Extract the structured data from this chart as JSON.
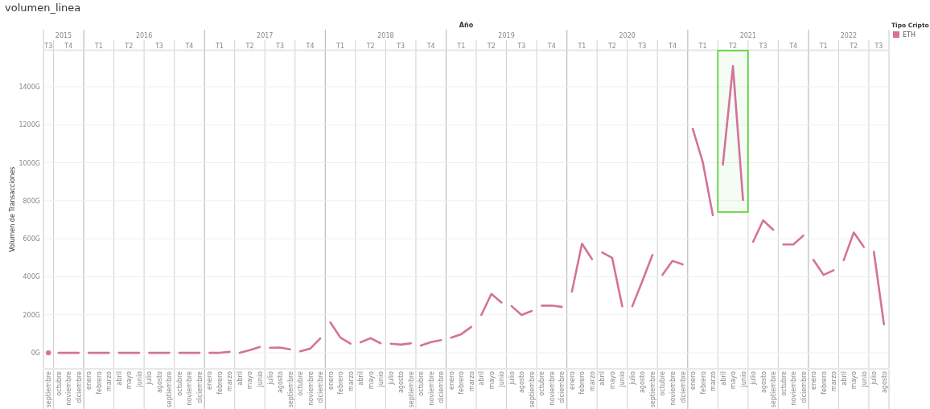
{
  "chart_data": {
    "type": "line",
    "title": "volumen_linea",
    "ylabel": "Volumen de Transacciones",
    "x2label": "Año",
    "legend_title": "Tipo Cripto",
    "legend": "top right",
    "grid": "y",
    "marker": "none",
    "line_style": "solid",
    "xlim": [
      "2015-08-16",
      "2022-08-16"
    ],
    "ylim": [
      -80,
      1590
    ],
    "yticks": [
      {
        "value": 0,
        "label": "0G"
      },
      {
        "value": 200,
        "label": "200G"
      },
      {
        "value": 400,
        "label": "400G"
      },
      {
        "value": 600,
        "label": "600G"
      },
      {
        "value": 800,
        "label": "800G"
      },
      {
        "value": 1000,
        "label": "1000G"
      },
      {
        "value": 1200,
        "label": "1200G"
      },
      {
        "value": 1400,
        "label": "1400G"
      }
    ],
    "xticks": [
      {
        "value": "2015-09",
        "label": "septiembre"
      },
      {
        "value": "2015-10",
        "label": "octubre"
      },
      {
        "value": "2015-11",
        "label": "noviembre"
      },
      {
        "value": "2015-12",
        "label": "diciembre"
      },
      {
        "value": "2016-01",
        "label": "enero"
      },
      {
        "value": "2016-02",
        "label": "febrero"
      },
      {
        "value": "2016-03",
        "label": "marzo"
      },
      {
        "value": "2016-04",
        "label": "abril"
      },
      {
        "value": "2016-05",
        "label": "mayo"
      },
      {
        "value": "2016-06",
        "label": "junio"
      },
      {
        "value": "2016-07",
        "label": "julio"
      },
      {
        "value": "2016-08",
        "label": "agosto"
      },
      {
        "value": "2016-09",
        "label": "septiembre"
      },
      {
        "value": "2016-10",
        "label": "octubre"
      },
      {
        "value": "2016-11",
        "label": "noviembre"
      },
      {
        "value": "2016-12",
        "label": "diciembre"
      },
      {
        "value": "2017-01",
        "label": "enero"
      },
      {
        "value": "2017-02",
        "label": "febrero"
      },
      {
        "value": "2017-03",
        "label": "marzo"
      },
      {
        "value": "2017-04",
        "label": "abril"
      },
      {
        "value": "2017-05",
        "label": "mayo"
      },
      {
        "value": "2017-06",
        "label": "junio"
      },
      {
        "value": "2017-07",
        "label": "julio"
      },
      {
        "value": "2017-08",
        "label": "agosto"
      },
      {
        "value": "2017-09",
        "label": "septiembre"
      },
      {
        "value": "2017-10",
        "label": "octubre"
      },
      {
        "value": "2017-11",
        "label": "noviembre"
      },
      {
        "value": "2017-12",
        "label": "diciembre"
      },
      {
        "value": "2018-01",
        "label": "enero"
      },
      {
        "value": "2018-02",
        "label": "febrero"
      },
      {
        "value": "2018-03",
        "label": "marzo"
      },
      {
        "value": "2018-04",
        "label": "abril"
      },
      {
        "value": "2018-05",
        "label": "mayo"
      },
      {
        "value": "2018-06",
        "label": "junio"
      },
      {
        "value": "2018-07",
        "label": "julio"
      },
      {
        "value": "2018-08",
        "label": "agosto"
      },
      {
        "value": "2018-09",
        "label": "septiembre"
      },
      {
        "value": "2018-10",
        "label": "octubre"
      },
      {
        "value": "2018-11",
        "label": "noviembre"
      },
      {
        "value": "2018-12",
        "label": "diciembre"
      },
      {
        "value": "2019-01",
        "label": "enero"
      },
      {
        "value": "2019-02",
        "label": "febrero"
      },
      {
        "value": "2019-03",
        "label": "marzo"
      },
      {
        "value": "2019-04",
        "label": "abril"
      },
      {
        "value": "2019-05",
        "label": "mayo"
      },
      {
        "value": "2019-06",
        "label": "junio"
      },
      {
        "value": "2019-07",
        "label": "julio"
      },
      {
        "value": "2019-08",
        "label": "agosto"
      },
      {
        "value": "2019-09",
        "label": "septiembre"
      },
      {
        "value": "2019-10",
        "label": "octubre"
      },
      {
        "value": "2019-11",
        "label": "noviembre"
      },
      {
        "value": "2019-12",
        "label": "diciembre"
      },
      {
        "value": "2020-01",
        "label": "enero"
      },
      {
        "value": "2020-02",
        "label": "febrero"
      },
      {
        "value": "2020-03",
        "label": "marzo"
      },
      {
        "value": "2020-04",
        "label": "abril"
      },
      {
        "value": "2020-05",
        "label": "mayo"
      },
      {
        "value": "2020-06",
        "label": "junio"
      },
      {
        "value": "2020-07",
        "label": "julio"
      },
      {
        "value": "2020-08",
        "label": "agosto"
      },
      {
        "value": "2020-09",
        "label": "septiembre"
      },
      {
        "value": "2020-10",
        "label": "octubre"
      },
      {
        "value": "2020-11",
        "label": "noviembre"
      },
      {
        "value": "2020-12",
        "label": "diciembre"
      },
      {
        "value": "2021-01",
        "label": "enero"
      },
      {
        "value": "2021-02",
        "label": "febrero"
      },
      {
        "value": "2021-03",
        "label": "marzo"
      },
      {
        "value": "2021-04",
        "label": "abril"
      },
      {
        "value": "2021-05",
        "label": "mayo"
      },
      {
        "value": "2021-06",
        "label": "junio"
      },
      {
        "value": "2021-07",
        "label": "julio"
      },
      {
        "value": "2021-08",
        "label": "agosto"
      },
      {
        "value": "2021-09",
        "label": "septiembre"
      },
      {
        "value": "2021-10",
        "label": "octubre"
      },
      {
        "value": "2021-11",
        "label": "noviembre"
      },
      {
        "value": "2021-12",
        "label": "diciembre"
      },
      {
        "value": "2022-01",
        "label": "enero"
      },
      {
        "value": "2022-02",
        "label": "febrero"
      },
      {
        "value": "2022-03",
        "label": "marzo"
      },
      {
        "value": "2022-04",
        "label": "abril"
      },
      {
        "value": "2022-05",
        "label": "mayo"
      },
      {
        "value": "2022-06",
        "label": "junio"
      },
      {
        "value": "2022-07",
        "label": "julio"
      },
      {
        "value": "2022-08",
        "label": "agosto"
      }
    ],
    "x2ticks": [
      {
        "value": "2015-09",
        "label": "T3"
      },
      {
        "value": "2015-11",
        "label": "T4"
      },
      {
        "value": "2016-02",
        "label": "T1"
      },
      {
        "value": "2016-05",
        "label": "T2"
      },
      {
        "value": "2016-08",
        "label": "T3"
      },
      {
        "value": "2016-11",
        "label": "T4"
      },
      {
        "value": "2017-02",
        "label": "T1"
      },
      {
        "value": "2017-05",
        "label": "T2"
      },
      {
        "value": "2017-08",
        "label": "T3"
      },
      {
        "value": "2017-11",
        "label": "T4"
      },
      {
        "value": "2018-02",
        "label": "T1"
      },
      {
        "value": "2018-05",
        "label": "T2"
      },
      {
        "value": "2018-08",
        "label": "T3"
      },
      {
        "value": "2018-11",
        "label": "T4"
      },
      {
        "value": "2019-02",
        "label": "T1"
      },
      {
        "value": "2019-05",
        "label": "T2"
      },
      {
        "value": "2019-08",
        "label": "T3"
      },
      {
        "value": "2019-11",
        "label": "T4"
      },
      {
        "value": "2020-02",
        "label": "T1"
      },
      {
        "value": "2020-05",
        "label": "T2"
      },
      {
        "value": "2020-08",
        "label": "T3"
      },
      {
        "value": "2020-11",
        "label": "T4"
      },
      {
        "value": "2021-02",
        "label": "T1"
      },
      {
        "value": "2021-05",
        "label": "T2"
      },
      {
        "value": "2021-08",
        "label": "T3"
      },
      {
        "value": "2021-11",
        "label": "T4"
      },
      {
        "value": "2022-02",
        "label": "T1"
      },
      {
        "value": "2022-05",
        "label": "T2"
      },
      {
        "value": "2022-07-16",
        "label": "T3"
      }
    ],
    "x2lim": [
      "2015-08-16",
      "2022-08-16"
    ],
    "annotations": [
      "2015",
      "2016",
      "2017",
      "2018",
      "2019",
      "2020",
      "2021",
      "2022"
    ],
    "bands": [
      {
        "axis": "x",
        "from": "2021-03-16",
        "to": "2021-06-16",
        "color": "#4cd12c"
      }
    ],
    "series": [
      {
        "name": "ETH",
        "color": "#d4729a",
        "marker": "circle",
        "x": [
          "2015-09"
        ],
        "values": [
          0
        ]
      },
      {
        "color": "#d4729a",
        "x": [
          "2015-10",
          "2015-11",
          "2015-12"
        ],
        "values": [
          0,
          0,
          0
        ]
      },
      {
        "color": "#d4729a",
        "x": [
          "2016-01",
          "2016-02",
          "2016-03"
        ],
        "values": [
          0,
          0,
          0
        ]
      },
      {
        "color": "#d4729a",
        "x": [
          "2016-04",
          "2016-05",
          "2016-06"
        ],
        "values": [
          0,
          0,
          0
        ]
      },
      {
        "color": "#d4729a",
        "x": [
          "2016-07",
          "2016-08",
          "2016-09"
        ],
        "values": [
          0,
          0,
          0
        ]
      },
      {
        "color": "#d4729a",
        "x": [
          "2016-10",
          "2016-11",
          "2016-12"
        ],
        "values": [
          0,
          0,
          0
        ]
      },
      {
        "color": "#d4729a",
        "x": [
          "2017-01",
          "2017-02",
          "2017-03"
        ],
        "values": [
          0,
          0,
          5
        ]
      },
      {
        "color": "#d4729a",
        "x": [
          "2017-04",
          "2017-05",
          "2017-06"
        ],
        "values": [
          0,
          14,
          31
        ]
      },
      {
        "color": "#d4729a",
        "x": [
          "2017-07",
          "2017-08",
          "2017-09"
        ],
        "values": [
          27,
          28,
          18
        ]
      },
      {
        "color": "#d4729a",
        "x": [
          "2017-10",
          "2017-11",
          "2017-12"
        ],
        "values": [
          8,
          22,
          76
        ]
      },
      {
        "color": "#d4729a",
        "x": [
          "2018-01",
          "2018-02",
          "2018-03"
        ],
        "values": [
          160,
          80,
          48
        ]
      },
      {
        "color": "#d4729a",
        "x": [
          "2018-04",
          "2018-05",
          "2018-06"
        ],
        "values": [
          55,
          77,
          50
        ]
      },
      {
        "color": "#d4729a",
        "x": [
          "2018-07",
          "2018-08",
          "2018-09"
        ],
        "values": [
          48,
          43,
          50
        ]
      },
      {
        "color": "#d4729a",
        "x": [
          "2018-10",
          "2018-11",
          "2018-12"
        ],
        "values": [
          38,
          56,
          67
        ]
      },
      {
        "color": "#d4729a",
        "x": [
          "2019-01",
          "2019-02",
          "2019-03"
        ],
        "values": [
          80,
          98,
          136
        ]
      },
      {
        "color": "#d4729a",
        "x": [
          "2019-04",
          "2019-05",
          "2019-06"
        ],
        "values": [
          199,
          310,
          265
        ]
      },
      {
        "color": "#d4729a",
        "x": [
          "2019-07",
          "2019-08",
          "2019-09"
        ],
        "values": [
          246,
          199,
          220
        ]
      },
      {
        "color": "#d4729a",
        "x": [
          "2019-10",
          "2019-11",
          "2019-12"
        ],
        "values": [
          248,
          249,
          242
        ]
      },
      {
        "color": "#d4729a",
        "x": [
          "2020-01",
          "2020-02",
          "2020-03"
        ],
        "values": [
          322,
          574,
          493
        ]
      },
      {
        "color": "#d4729a",
        "x": [
          "2020-04",
          "2020-05",
          "2020-06"
        ],
        "values": [
          528,
          500,
          245
        ]
      },
      {
        "color": "#d4729a",
        "x": [
          "2020-07",
          "2020-08",
          "2020-09"
        ],
        "values": [
          245,
          378,
          515
        ]
      },
      {
        "color": "#d4729a",
        "x": [
          "2020-10",
          "2020-11",
          "2020-12"
        ],
        "values": [
          410,
          484,
          465
        ]
      },
      {
        "color": "#d4729a",
        "x": [
          "2021-01",
          "2021-02",
          "2021-03"
        ],
        "values": [
          1179,
          1004,
          724
        ]
      },
      {
        "color": "#d4729a",
        "x": [
          "2021-04",
          "2021-05",
          "2021-06"
        ],
        "values": [
          990,
          1508,
          804
        ]
      },
      {
        "color": "#d4729a",
        "x": [
          "2021-07",
          "2021-08",
          "2021-09"
        ],
        "values": [
          584,
          697,
          647
        ]
      },
      {
        "color": "#d4729a",
        "x": [
          "2021-10",
          "2021-11",
          "2021-12"
        ],
        "values": [
          570,
          570,
          617
        ]
      },
      {
        "color": "#d4729a",
        "x": [
          "2022-01",
          "2022-02",
          "2022-03"
        ],
        "values": [
          489,
          410,
          434
        ]
      },
      {
        "color": "#d4729a",
        "x": [
          "2022-04",
          "2022-05",
          "2022-06"
        ],
        "values": [
          487,
          633,
          557
        ]
      },
      {
        "color": "#d4729a",
        "x": [
          "2022-07",
          "2022-08"
        ],
        "values": [
          532,
          150
        ]
      }
    ]
  }
}
